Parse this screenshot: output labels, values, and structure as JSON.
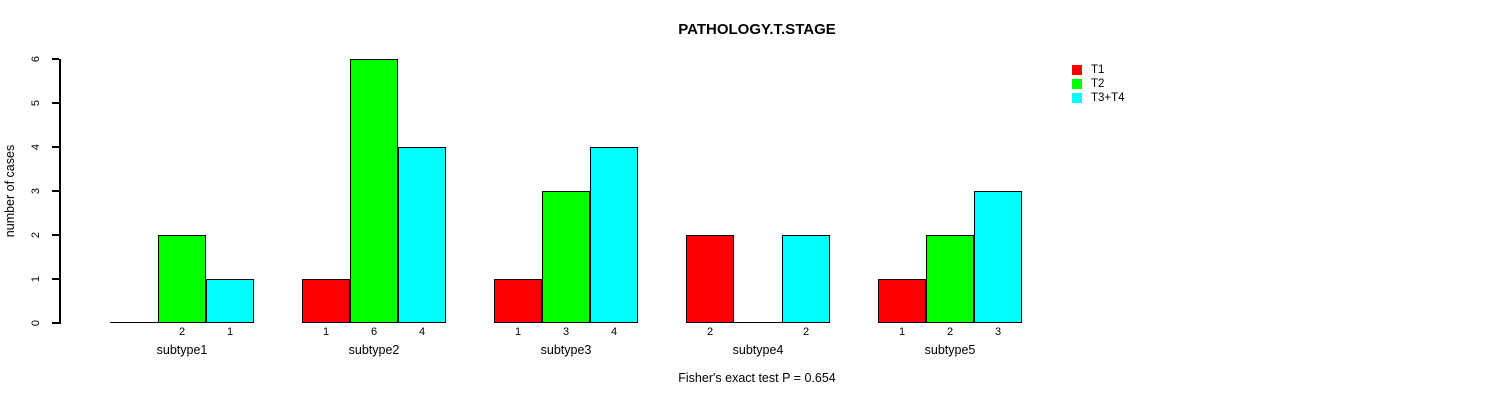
{
  "chart_data": {
    "type": "bar",
    "title": "PATHOLOGY.T.STAGE",
    "ylabel": "number of cases",
    "xlabel": "",
    "categories": [
      "subtype1",
      "subtype2",
      "subtype3",
      "subtype4",
      "subtype5"
    ],
    "series": [
      {
        "name": "T1",
        "color": "#ff0000",
        "values": [
          0,
          1,
          1,
          2,
          1
        ]
      },
      {
        "name": "T2",
        "color": "#00ff00",
        "values": [
          2,
          6,
          3,
          0,
          2
        ]
      },
      {
        "name": "T3+T4",
        "color": "#00ffff",
        "values": [
          1,
          4,
          4,
          2,
          3
        ]
      }
    ],
    "bar_value_labels": "counts shown under each nonzero bar",
    "ylim": [
      0,
      6
    ],
    "yticks": [
      0,
      1,
      2,
      3,
      4,
      5,
      6
    ],
    "grid": false,
    "legend_position": "top-right",
    "footer": "Fisher's exact test P = 0.654"
  },
  "colors": {
    "background": "#ffffff",
    "axis": "#000000",
    "text": "#000000"
  }
}
